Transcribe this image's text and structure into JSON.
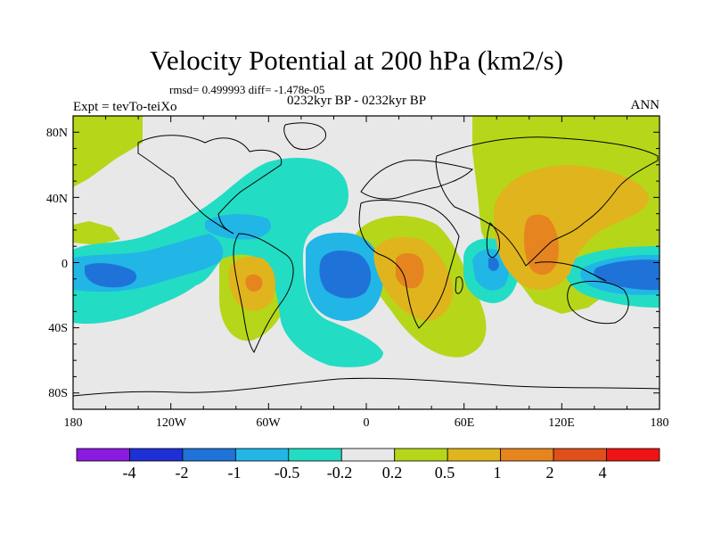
{
  "title": "Velocity Potential at 200 hPa (km2/s)",
  "stats": "rmsd= 0.499993 diff= -1.478e-05",
  "subtitle": "0232kyr BP - 0232kyr BP",
  "left_label": "Expt = tevTo-teiXo",
  "right_label": "ANN",
  "map": {
    "lat_ticks": [
      "80N",
      "40N",
      "0",
      "40S",
      "80S"
    ],
    "lon_ticks": [
      "180",
      "120W",
      "60W",
      "0",
      "60E",
      "120E",
      "180"
    ]
  },
  "colorbar": {
    "labels": [
      "-4",
      "-2",
      "-1",
      "-0.5",
      "-0.2",
      "0.2",
      "0.5",
      "1",
      "2",
      "4"
    ],
    "colors": [
      "#8b1ae0",
      "#1f2fd6",
      "#1f73d8",
      "#21b6e6",
      "#23dcc4",
      "#e8e8e8",
      "#b6d61a",
      "#e0b41c",
      "#e6841f",
      "#e04f1a",
      "#ee1414"
    ]
  },
  "fill_colors": {
    "background": "#e8e8e8",
    "cyan": "#23dcc4",
    "lightblue": "#21b6e6",
    "blue": "#1f73d8",
    "green": "#b6d61a",
    "yellow": "#e0b41c",
    "orange": "#e6841f"
  }
}
